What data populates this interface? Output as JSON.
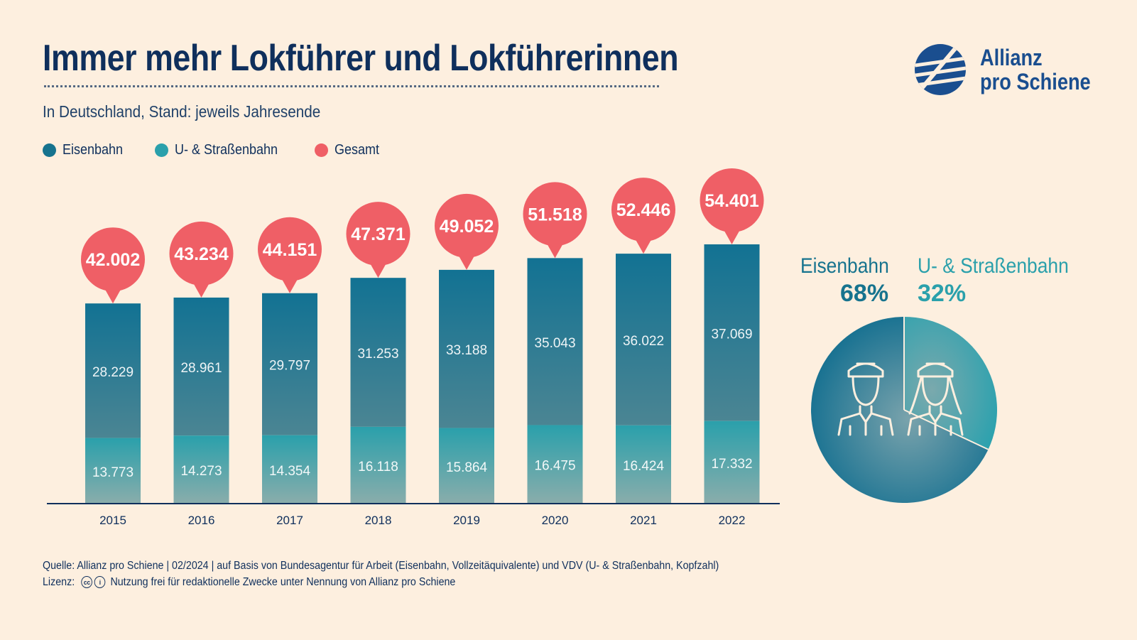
{
  "header": {
    "title": "Immer mehr Lokführer und Lokführerinnen",
    "subtitle": "In Deutschland, Stand: jeweils Jahresende"
  },
  "logo": {
    "line1": "Allianz",
    "line2": "pro Schiene",
    "icon": "allianz-pro-schiene-logo-icon"
  },
  "legend": [
    {
      "label": "Eisenbahn",
      "color": "#16738e"
    },
    {
      "label": "U- & Straßenbahn",
      "color": "#2aa0ab"
    },
    {
      "label": "Gesamt",
      "color": "#ef5f66"
    }
  ],
  "chart_data": [
    {
      "type": "bar",
      "stacked": true,
      "categories": [
        "2015",
        "2016",
        "2017",
        "2018",
        "2019",
        "2020",
        "2021",
        "2022"
      ],
      "series": [
        {
          "name": "Eisenbahn",
          "values": [
            28229,
            28961,
            29797,
            31253,
            33188,
            35043,
            36022,
            37069
          ],
          "labels": [
            "28.229",
            "28.961",
            "29.797",
            "31.253",
            "33.188",
            "35.043",
            "36.022",
            "37.069"
          ],
          "color": "#16738e"
        },
        {
          "name": "U- & Straßenbahn",
          "values": [
            13773,
            14273,
            14354,
            16118,
            15864,
            16475,
            16424,
            17332
          ],
          "labels": [
            "13.773",
            "14.273",
            "14.354",
            "16.118",
            "15.864",
            "16.475",
            "16.424",
            "17.332"
          ],
          "color": "#2aa0ab"
        }
      ],
      "totals": {
        "name": "Gesamt",
        "values": [
          42002,
          43234,
          44151,
          47371,
          49052,
          51518,
          52446,
          54401
        ],
        "labels": [
          "42.002",
          "43.234",
          "44.151",
          "47.371",
          "49.052",
          "51.518",
          "52.446",
          "54.401"
        ],
        "color": "#ef5f66"
      },
      "title": "",
      "xlabel": "",
      "ylabel": "",
      "grid": false
    },
    {
      "type": "pie",
      "slices": [
        {
          "label": "Eisenbahn",
          "value": 68,
          "value_label": "68%",
          "color": "#16738e"
        },
        {
          "label": "U- & Straßenbahn",
          "value": 32,
          "value_label": "32%",
          "color": "#2aa0ab"
        }
      ],
      "icons": [
        "train-driver-male-icon",
        "train-driver-female-icon"
      ]
    }
  ],
  "footer": {
    "source": "Quelle: Allianz pro Schiene | 02/2024 | auf Basis von Bundesagentur für Arbeit (Eisenbahn, Vollzeitäquivalente) und VDV (U- & Straßenbahn, Kopfzahl)",
    "license_label": "Lizenz:",
    "license_text": "Nutzung frei für redaktionelle Zwecke unter Nennung von Allianz pro Schiene",
    "cc_icon": "creative-commons-icon",
    "by_icon": "attribution-icon"
  }
}
